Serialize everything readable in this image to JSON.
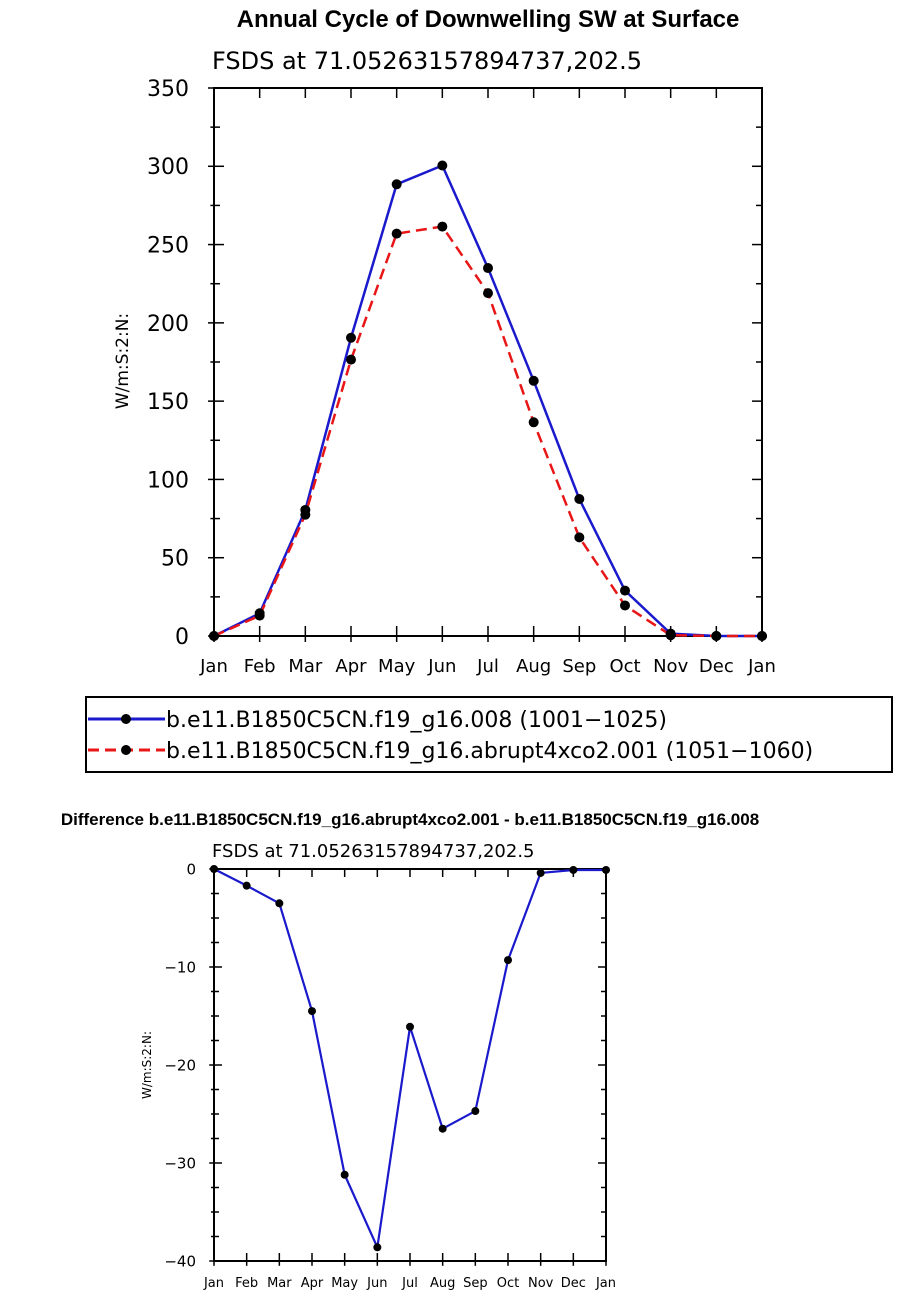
{
  "chart_data": [
    {
      "type": "line",
      "title": "Annual Cycle of Downwelling SW at Surface",
      "subtitle": "FSDS at 71.05263157894737,202.5",
      "ylabel": "W/m:S:2:N:",
      "xlabel": "",
      "ylim": [
        0,
        350
      ],
      "y_major_ticks": [
        0,
        50,
        100,
        150,
        200,
        250,
        300,
        350
      ],
      "categories": [
        "Jan",
        "Feb",
        "Mar",
        "Apr",
        "May",
        "Jun",
        "Jul",
        "Aug",
        "Sep",
        "Oct",
        "Nov",
        "Dec",
        "Jan"
      ],
      "grid": false,
      "legend_position": "below",
      "series": [
        {
          "name": "b.e11.B1850C5CN.f19_g16.008 (1001−1025)",
          "color": "#1a1acc",
          "dash": "solid",
          "values": [
            0,
            14.5,
            80.5,
            190.5,
            288.5,
            300.5,
            235,
            163,
            87.5,
            29,
            1.5,
            0,
            0
          ]
        },
        {
          "name": "b.e11.B1850C5CN.f19_g16.abrupt4xco2.001 (1051−1060)",
          "color": "#e81616",
          "dash": "dashed",
          "values": [
            0,
            13,
            77.5,
            176.5,
            257,
            261.5,
            219,
            136.5,
            63,
            19.5,
            0.5,
            0,
            0
          ]
        }
      ]
    },
    {
      "type": "line",
      "title": "Difference b.e11.B1850C5CN.f19_g16.abrupt4xco2.001 - b.e11.B1850C5CN.f19_g16.008",
      "subtitle": "FSDS at 71.05263157894737,202.5",
      "ylabel": "W/m:S:2:N:",
      "xlabel": "",
      "ylim": [
        -40,
        0
      ],
      "y_major_ticks": [
        -40,
        -30,
        -20,
        -10,
        0
      ],
      "categories": [
        "Jan",
        "Feb",
        "Mar",
        "Apr",
        "May",
        "Jun",
        "Jul",
        "Aug",
        "Sep",
        "Oct",
        "Nov",
        "Dec",
        "Jan"
      ],
      "grid": false,
      "series": [
        {
          "color": "#1a1acc",
          "dash": "solid",
          "values": [
            0,
            -1.7,
            -3.5,
            -14.5,
            -31.2,
            -38.6,
            -16.1,
            -26.5,
            -24.7,
            -9.3,
            -0.4,
            -0.1,
            -0.1
          ]
        }
      ]
    }
  ]
}
